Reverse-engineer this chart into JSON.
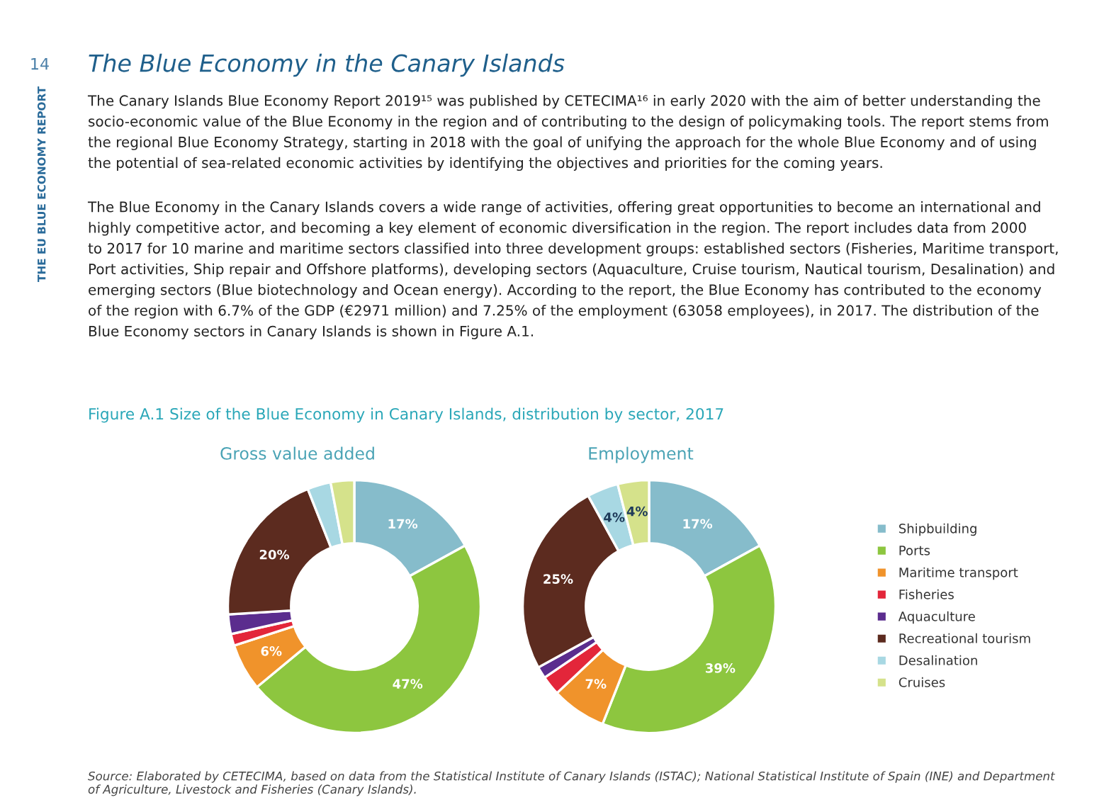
{
  "chart_data": [
    {
      "type": "donut",
      "title": "Gross value added",
      "categories": [
        "Shipbuilding",
        "Ports",
        "Maritime transport",
        "Fisheries",
        "Aquaculture",
        "Recreational tourism",
        "Desalination",
        "Cruises"
      ],
      "values": [
        17,
        47,
        6,
        1.5,
        2.5,
        20,
        3,
        3
      ],
      "value_labels": [
        "17%",
        "47%",
        "6%",
        null,
        null,
        "20%",
        null,
        null
      ],
      "colors": [
        "#86bccb",
        "#8dc63f",
        "#f0932b",
        "#e3263a",
        "#5b2d8e",
        "#5c2b1f",
        "#a8d8e3",
        "#d5e28b"
      ],
      "legend": "right",
      "annotations": [
        "14",
        "THE EU BLUE ECONOMY REPORT",
        "The Blue Economy in the Canary Islands",
        "The Canary Islands Blue Economy Report 2019¹⁵ was published by CETECIMA¹⁶ in early 2020 with the aim of better understanding the\nsocio-economic value of the Blue Economy in the region and of contributing to the design of policymaking tools. The report stems from\nthe regional Blue Economy Strategy, starting in 2018 with the goal of unifying the approach for the whole Blue Economy and of using\nthe potential of sea-related economic activities by identifying the objectives and priorities for the coming years.",
        "The Blue Economy in the Canary Islands covers a wide range of activities, offering great opportunities to become an international and\nhighly competitive actor, and becoming a key element of economic diversification in the region. The report includes data from 2000\nto 2017 for 10 marine and maritime sectors classified into three development groups: established sectors (Fisheries, Maritime transport,\nPort activities, Ship repair and Offshore platforms), developing sectors (Aquaculture, Cruise tourism, Nautical tourism, Desalination) and\nemerging sectors (Blue biotechnology and Ocean energy). According to the report, the Blue Economy has contributed to the economy\nof the region with 6.7% of the GDP (€2971 million) and 7.25% of the employment (63058 employees), in 2017. The distribution of the\nBlue Economy sectors in Canary Islands is shown in Figure A.1.",
        "Figure A.1 Size of the Blue Economy in Canary Islands, distribution by sector, 2017",
        "Source: Elaborated by CETECIMA, based on data from the Statistical Institute of Canary Islands (ISTAC); National Statistical Institute of Spain (INE) and Department\nof Agriculture, Livestock and Fisheries (Canary Islands)."
      ]
    },
    {
      "type": "donut",
      "title": "Employment",
      "categories": [
        null,
        null,
        null,
        null,
        null,
        null,
        null,
        null
      ],
      "values": [
        17,
        39,
        7,
        2.5,
        1.5,
        25,
        4,
        4
      ],
      "value_labels": [
        "17%",
        "39%",
        "7%",
        null,
        null,
        "25%",
        "4%",
        "4%"
      ],
      "colors": [
        "#86bccb",
        "#8dc63f",
        "#f0932b",
        "#e3263a",
        "#5b2d8e",
        "#5c2b1f",
        "#a8d8e3",
        "#d5e28b"
      ]
    }
  ]
}
